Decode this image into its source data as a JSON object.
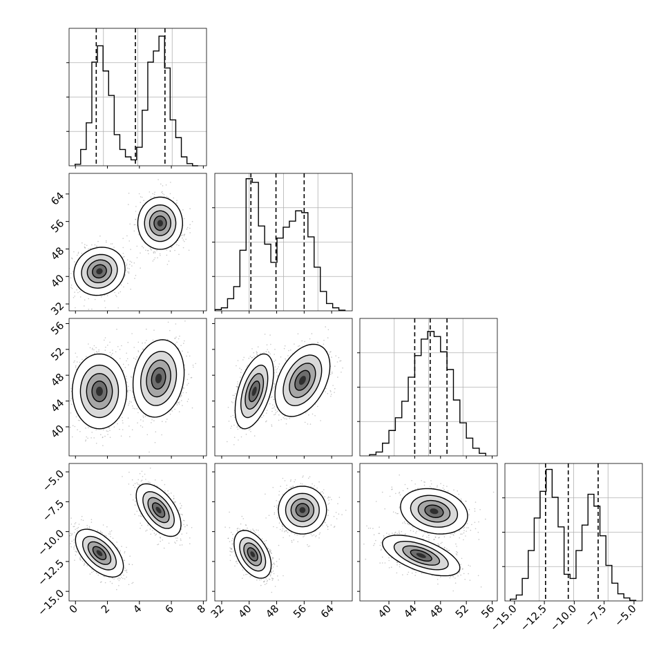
{
  "chart_data": {
    "type": "corner",
    "parameters": [
      {
        "range": [
          -0.4,
          8.2
        ],
        "xticks": [
          "0",
          "2",
          "4",
          "6",
          "8"
        ],
        "quantiles": [
          1.3,
          3.75,
          5.6
        ],
        "hist_max": 180,
        "hist": [
          {
            "x": 0.15,
            "v": 2
          },
          {
            "x": 0.5,
            "v": 22
          },
          {
            "x": 0.85,
            "v": 58
          },
          {
            "x": 1.2,
            "v": 140
          },
          {
            "x": 1.55,
            "v": 162
          },
          {
            "x": 1.9,
            "v": 128
          },
          {
            "x": 2.25,
            "v": 95
          },
          {
            "x": 2.6,
            "v": 42
          },
          {
            "x": 2.95,
            "v": 22
          },
          {
            "x": 3.3,
            "v": 12
          },
          {
            "x": 3.65,
            "v": 8
          },
          {
            "x": 4.0,
            "v": 25
          },
          {
            "x": 4.35,
            "v": 75
          },
          {
            "x": 4.7,
            "v": 140
          },
          {
            "x": 5.05,
            "v": 155
          },
          {
            "x": 5.4,
            "v": 175
          },
          {
            "x": 5.75,
            "v": 132
          },
          {
            "x": 6.1,
            "v": 62
          },
          {
            "x": 6.45,
            "v": 38
          },
          {
            "x": 6.8,
            "v": 12
          },
          {
            "x": 7.15,
            "v": 3
          },
          {
            "x": 7.5,
            "v": 0
          }
        ]
      },
      {
        "range": [
          30.0,
          70.0
        ],
        "ticks": [
          "32",
          "40",
          "48",
          "56",
          "64"
        ],
        "quantiles": [
          40.5,
          47.8,
          56.0
        ],
        "hist_max": 220,
        "hist": [
          {
            "x": 31.0,
            "v": 2
          },
          {
            "x": 32.8,
            "v": 5
          },
          {
            "x": 34.6,
            "v": 20
          },
          {
            "x": 36.4,
            "v": 40
          },
          {
            "x": 38.2,
            "v": 100
          },
          {
            "x": 40.0,
            "v": 218
          },
          {
            "x": 41.8,
            "v": 212
          },
          {
            "x": 43.6,
            "v": 140
          },
          {
            "x": 45.4,
            "v": 110
          },
          {
            "x": 47.2,
            "v": 80
          },
          {
            "x": 49.0,
            "v": 120
          },
          {
            "x": 50.8,
            "v": 138
          },
          {
            "x": 52.6,
            "v": 148
          },
          {
            "x": 54.4,
            "v": 165
          },
          {
            "x": 56.2,
            "v": 162
          },
          {
            "x": 58.0,
            "v": 122
          },
          {
            "x": 59.8,
            "v": 72
          },
          {
            "x": 61.6,
            "v": 32
          },
          {
            "x": 63.4,
            "v": 12
          },
          {
            "x": 65.2,
            "v": 5
          },
          {
            "x": 67.0,
            "v": 1
          }
        ]
      },
      {
        "range": [
          35.5,
          56.8
        ],
        "ticks": [
          "40",
          "44",
          "48",
          "52",
          "56"
        ],
        "quantiles": [
          44.0,
          46.4,
          49.0
        ],
        "hist_max": 105,
        "hist": [
          {
            "x": 37.5,
            "v": 1
          },
          {
            "x": 38.5,
            "v": 3
          },
          {
            "x": 39.5,
            "v": 10
          },
          {
            "x": 40.5,
            "v": 20
          },
          {
            "x": 41.5,
            "v": 30
          },
          {
            "x": 42.5,
            "v": 43
          },
          {
            "x": 43.5,
            "v": 62
          },
          {
            "x": 44.5,
            "v": 79
          },
          {
            "x": 45.5,
            "v": 92
          },
          {
            "x": 46.5,
            "v": 98
          },
          {
            "x": 47.5,
            "v": 94
          },
          {
            "x": 48.5,
            "v": 82
          },
          {
            "x": 49.5,
            "v": 68
          },
          {
            "x": 50.5,
            "v": 44
          },
          {
            "x": 51.5,
            "v": 26
          },
          {
            "x": 52.5,
            "v": 14
          },
          {
            "x": 53.5,
            "v": 6
          },
          {
            "x": 54.5,
            "v": 2
          }
        ]
      },
      {
        "range": [
          -15.8,
          -4.3
        ],
        "ticks": [
          "-5.0",
          "-7.5",
          "-10.0",
          "-12.5",
          "-15.0"
        ],
        "xticks": [
          "-15.0",
          "-12.5",
          "-10.0",
          "-7.5",
          "-5.0"
        ],
        "quantiles": [
          -12.4,
          -10.5,
          -8.0
        ],
        "hist_max": 225,
        "hist": [
          {
            "x": -15.1,
            "v": 3
          },
          {
            "x": -14.6,
            "v": 10
          },
          {
            "x": -14.1,
            "v": 38
          },
          {
            "x": -13.6,
            "v": 85
          },
          {
            "x": -13.1,
            "v": 140
          },
          {
            "x": -12.6,
            "v": 185
          },
          {
            "x": -12.1,
            "v": 222
          },
          {
            "x": -11.6,
            "v": 175
          },
          {
            "x": -11.1,
            "v": 125
          },
          {
            "x": -10.6,
            "v": 45
          },
          {
            "x": -10.1,
            "v": 38
          },
          {
            "x": -9.6,
            "v": 85
          },
          {
            "x": -9.1,
            "v": 128
          },
          {
            "x": -8.6,
            "v": 180
          },
          {
            "x": -8.1,
            "v": 160
          },
          {
            "x": -7.6,
            "v": 110
          },
          {
            "x": -7.1,
            "v": 60
          },
          {
            "x": -6.6,
            "v": 30
          },
          {
            "x": -6.1,
            "v": 12
          },
          {
            "x": -5.6,
            "v": 5
          },
          {
            "x": -5.1,
            "v": 1
          }
        ]
      }
    ],
    "blobs": [
      {
        "px": 0,
        "py": 1,
        "cx": 1.5,
        "cy": 41.5,
        "sx": 0.8,
        "sy": 3.5,
        "rho": 0.1
      },
      {
        "px": 0,
        "py": 1,
        "cx": 5.3,
        "cy": 55.5,
        "sx": 0.7,
        "sy": 3.8,
        "rho": 0.0
      },
      {
        "px": 0,
        "py": 2,
        "cx": 1.5,
        "cy": 45.5,
        "sx": 0.85,
        "sy": 2.9,
        "rho": 0.0
      },
      {
        "px": 0,
        "py": 2,
        "cx": 5.2,
        "cy": 47.5,
        "sx": 0.8,
        "sy": 3.0,
        "rho": 0.15
      },
      {
        "px": 1,
        "py": 2,
        "cx": 41.5,
        "cy": 45.5,
        "sx": 2.8,
        "sy": 2.9,
        "rho": 0.5
      },
      {
        "px": 1,
        "py": 2,
        "cx": 55.5,
        "cy": 47.2,
        "sx": 4.0,
        "sy": 2.8,
        "rho": 0.4
      },
      {
        "px": 0,
        "py": 3,
        "cx": 1.5,
        "cy": -11.8,
        "sx": 0.75,
        "sy": 1.0,
        "rho": -0.55
      },
      {
        "px": 0,
        "py": 3,
        "cx": 5.2,
        "cy": -8.2,
        "sx": 0.7,
        "sy": 1.1,
        "rho": -0.55
      },
      {
        "px": 1,
        "py": 3,
        "cx": 41.0,
        "cy": -11.9,
        "sx": 2.7,
        "sy": 1.0,
        "rho": -0.45
      },
      {
        "px": 1,
        "py": 3,
        "cx": 55.5,
        "cy": -8.2,
        "sx": 3.5,
        "sy": 1.0,
        "rho": 0.0
      },
      {
        "px": 2,
        "py": 3,
        "cx": 47.0,
        "cy": -8.3,
        "sx": 2.6,
        "sy": 0.95,
        "rho": -0.2
      },
      {
        "px": 2,
        "py": 3,
        "cx": 45.0,
        "cy": -12.0,
        "sx": 3.0,
        "sy": 0.85,
        "rho": -0.6
      }
    ]
  }
}
